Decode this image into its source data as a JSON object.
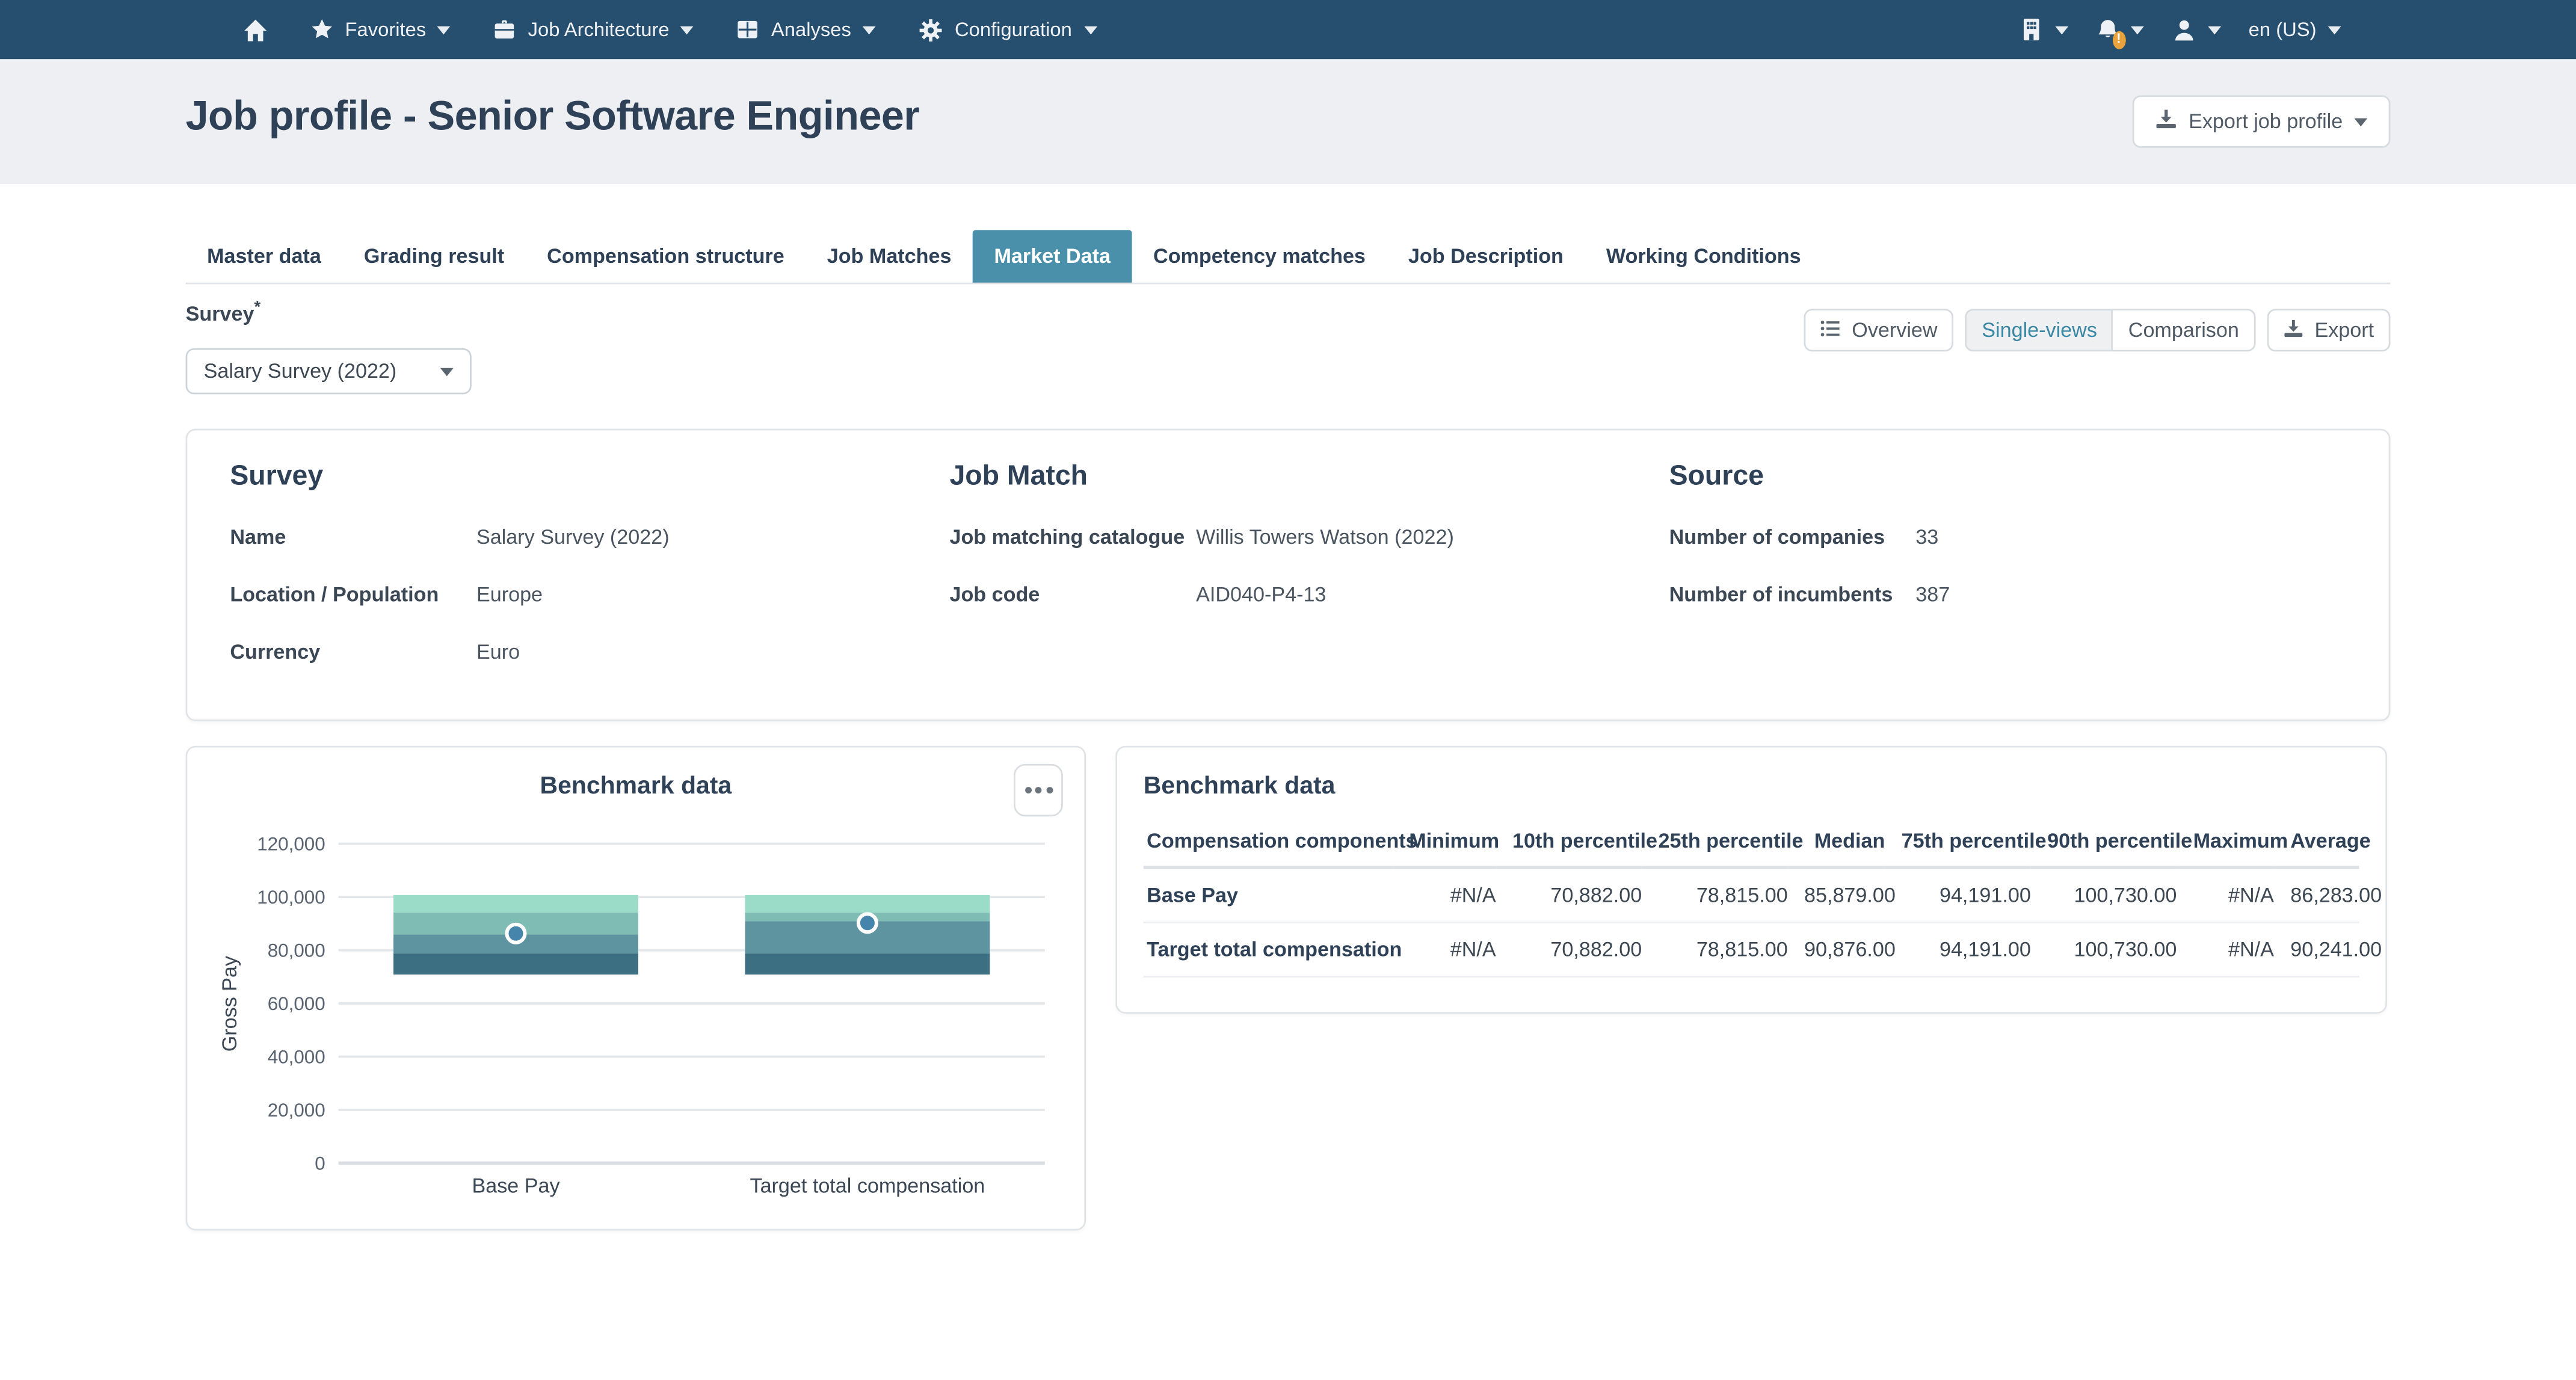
{
  "colors": {
    "navbar_bg": "#264e6e",
    "header_bg": "#edeff3",
    "active_tab_bg": "#4a90aa",
    "accent_teal": "#3987a3",
    "badge_orange": "#e8a33d",
    "average_marker_blue": "#4584ab",
    "bar_band_colors_bottom_to_top": [
      "#3d6f83",
      "#5e93a0",
      "#7fbcb4",
      "#9bdcc8"
    ]
  },
  "navbar": {
    "items": [
      {
        "label": "Favorites"
      },
      {
        "label": "Job Architecture"
      },
      {
        "label": "Analyses"
      },
      {
        "label": "Configuration"
      }
    ],
    "notification_badge": "!",
    "language": "en (US)"
  },
  "header": {
    "title": "Job profile - Senior Software Engineer",
    "export_button_label": "Export job profile"
  },
  "tabs": {
    "items": [
      "Master data",
      "Grading result",
      "Compensation structure",
      "Job Matches",
      "Market Data",
      "Competency matches",
      "Job Description",
      "Working Conditions"
    ],
    "active": "Market Data"
  },
  "survey_field": {
    "label": "Survey",
    "required_marker": "*",
    "value": "Salary Survey (2022)"
  },
  "view_toolbar": {
    "overview_label": "Overview",
    "single_views_label": "Single-views",
    "comparison_label": "Comparison",
    "export_label": "Export"
  },
  "info_card": {
    "survey": {
      "heading": "Survey",
      "rows": [
        {
          "label": "Name",
          "value": "Salary Survey (2022)"
        },
        {
          "label": "Location / Population",
          "value": "Europe"
        },
        {
          "label": "Currency",
          "value": "Euro"
        }
      ]
    },
    "job_match": {
      "heading": "Job Match",
      "rows": [
        {
          "label": "Job matching catalogue",
          "value": "Willis Towers Watson (2022)"
        },
        {
          "label": "Job code",
          "value": "AID040-P4-13"
        }
      ]
    },
    "source": {
      "heading": "Source",
      "rows": [
        {
          "label": "Number of companies",
          "value": "33"
        },
        {
          "label": "Number of incumbents",
          "value": "387"
        }
      ]
    }
  },
  "chart_card": {
    "title": "Benchmark data"
  },
  "chart_data": {
    "type": "bar",
    "title": "Benchmark data",
    "xlabel": "",
    "ylabel": "Gross Pay",
    "ylim": [
      0,
      120000
    ],
    "yticks": [
      0,
      20000,
      40000,
      60000,
      80000,
      100000,
      120000
    ],
    "grid": true,
    "legend_position": "none",
    "categories": [
      "Base Pay",
      "Target total compensation"
    ],
    "bars": [
      {
        "category": "Base Pay",
        "p10": 70882,
        "p25": 78815,
        "median": 85879,
        "p75": 94191,
        "p90": 100730,
        "average": 86283
      },
      {
        "category": "Target total compensation",
        "p10": 70882,
        "p25": 78815,
        "median": 90876,
        "p75": 94191,
        "p90": 100730,
        "average": 90241
      }
    ],
    "band_structure": [
      "p10-p25",
      "p25-median",
      "median-p75",
      "p75-p90"
    ],
    "band_colors_bottom_to_top": [
      "#3d6f83",
      "#5e93a0",
      "#7fbcb4",
      "#9bdcc8"
    ],
    "marker": {
      "label": "Average",
      "color": "#4584ab"
    }
  },
  "table_card": {
    "title": "Benchmark data",
    "columns": [
      "Compensation components",
      "Minimum",
      "10th percentile",
      "25th percentile",
      "Median",
      "75th percentile",
      "90th percentile",
      "Maximum",
      "Average"
    ],
    "rows": [
      {
        "component": "Base Pay",
        "values": [
          "#N/A",
          "70,882.00",
          "78,815.00",
          "85,879.00",
          "94,191.00",
          "100,730.00",
          "#N/A",
          "86,283.00"
        ]
      },
      {
        "component": "Target total compensation",
        "values": [
          "#N/A",
          "70,882.00",
          "78,815.00",
          "90,876.00",
          "94,191.00",
          "100,730.00",
          "#N/A",
          "90,241.00"
        ]
      }
    ]
  }
}
